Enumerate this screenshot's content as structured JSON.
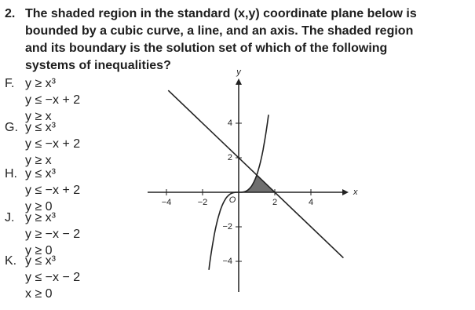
{
  "question": {
    "number": "2.",
    "lines": [
      "The shaded region in the standard (x,y) coordinate plane below is",
      "bounded by a cubic curve, a line, and an axis. The shaded region",
      "and its boundary is the solution set of which of the following",
      "systems of inequalities?"
    ]
  },
  "options": [
    {
      "letter": "F.",
      "inequalities": [
        "y ≥ x³",
        "y ≤ −x + 2",
        "y ≥ x"
      ]
    },
    {
      "letter": "G.",
      "inequalities": [
        "y ≤ x³",
        "y ≤ −x + 2",
        "y ≥ x"
      ]
    },
    {
      "letter": "H.",
      "inequalities": [
        "y ≤ x³",
        "y ≤ −x + 2",
        "y ≥ 0"
      ]
    },
    {
      "letter": "J.",
      "inequalities": [
        "y ≥ x³",
        "y ≥ −x − 2",
        "y ≥ 0"
      ]
    },
    {
      "letter": "K.",
      "inequalities": [
        "y ≤ x³",
        "y ≤ −x − 2",
        "x ≥ 0"
      ]
    }
  ],
  "graph": {
    "x_label": "x",
    "y_label": "y",
    "origin_label": "O",
    "x_ticks": [
      {
        "value": -4,
        "label": "−4"
      },
      {
        "value": -2,
        "label": "−2"
      },
      {
        "value": 2,
        "label": "2"
      },
      {
        "value": 4,
        "label": "4"
      }
    ],
    "y_ticks": [
      {
        "value": 4,
        "label": "4"
      },
      {
        "value": 2,
        "label": "2"
      },
      {
        "value": -2,
        "label": "−2"
      },
      {
        "value": -4,
        "label": "−4"
      }
    ]
  }
}
